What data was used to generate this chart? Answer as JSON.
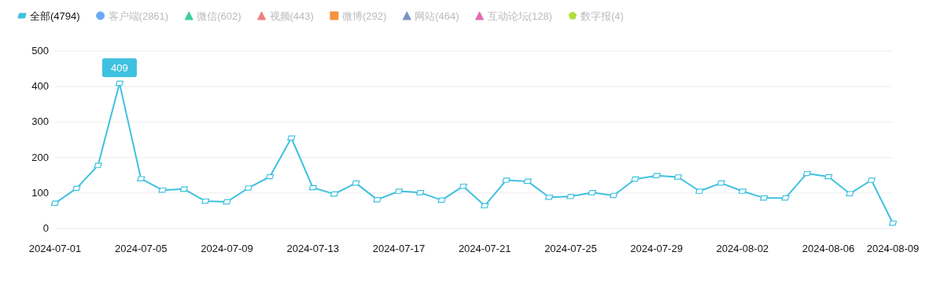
{
  "chart_data": {
    "type": "line",
    "categories": [
      "2024-07-01",
      null,
      null,
      null,
      "2024-07-05",
      null,
      null,
      null,
      "2024-07-09",
      null,
      null,
      null,
      "2024-07-13",
      null,
      null,
      null,
      "2024-07-17",
      null,
      null,
      null,
      "2024-07-21",
      null,
      null,
      null,
      "2024-07-25",
      null,
      null,
      null,
      "2024-07-29",
      null,
      null,
      null,
      "2024-08-02",
      null,
      null,
      null,
      "2024-08-06",
      null,
      null,
      "2024-08-09"
    ],
    "series": [
      {
        "name": "全部(4794)",
        "color": "#3fc1e0",
        "marker": "diamond",
        "values": [
          71,
          113,
          178,
          409,
          140,
          108,
          111,
          77,
          75,
          114,
          146,
          255,
          115,
          97,
          128,
          81,
          105,
          101,
          80,
          119,
          64,
          136,
          133,
          88,
          90,
          101,
          93,
          139,
          149,
          145,
          105,
          128,
          105,
          86,
          86,
          155,
          146,
          98,
          136,
          15
        ],
        "value_labels": [
          null,
          null,
          null,
          "409",
          null,
          null,
          null,
          null,
          null,
          null,
          null,
          null,
          null,
          null,
          null,
          null,
          null,
          null,
          null,
          null,
          null,
          null,
          null,
          null,
          null,
          null,
          null,
          null,
          null,
          null,
          null,
          null,
          null,
          null,
          null,
          null,
          null,
          null,
          null,
          null
        ]
      },
      {
        "name": "客户端(2861)",
        "color": "#6aa8f7",
        "marker": "circle",
        "values": [
          null,
          null,
          null,
          null,
          null,
          null,
          null,
          null,
          null,
          null,
          null,
          null,
          null,
          null,
          null,
          null,
          null,
          null,
          null,
          null,
          null,
          null,
          null,
          null,
          null,
          null,
          null,
          null,
          null,
          null,
          null,
          null,
          null,
          null,
          null,
          null,
          null,
          null,
          null,
          null
        ]
      },
      {
        "name": "微信(602)",
        "color": "#3ecf9a",
        "marker": "triangle",
        "values": [
          null,
          null,
          null,
          null,
          null,
          null,
          null,
          null,
          null,
          null,
          null,
          null,
          null,
          null,
          null,
          null,
          null,
          null,
          null,
          null,
          null,
          null,
          null,
          null,
          null,
          null,
          null,
          null,
          null,
          null,
          null,
          null,
          null,
          null,
          null,
          null,
          null,
          null,
          null,
          null
        ]
      },
      {
        "name": "视频(443)",
        "color": "#f07f7f",
        "marker": "triangle",
        "values": [
          null,
          null,
          null,
          null,
          null,
          null,
          null,
          null,
          null,
          null,
          null,
          null,
          null,
          null,
          null,
          null,
          null,
          null,
          null,
          null,
          null,
          null,
          null,
          null,
          null,
          null,
          null,
          null,
          null,
          null,
          null,
          null,
          null,
          null,
          null,
          null,
          null,
          null,
          null,
          null
        ]
      },
      {
        "name": "微博(292)",
        "color": "#f5923e",
        "marker": "square",
        "values": [
          null,
          null,
          null,
          null,
          null,
          null,
          null,
          null,
          null,
          null,
          null,
          null,
          null,
          null,
          null,
          null,
          null,
          null,
          null,
          null,
          null,
          null,
          null,
          null,
          null,
          null,
          null,
          null,
          null,
          null,
          null,
          null,
          null,
          null,
          null,
          null,
          null,
          null,
          null,
          null
        ]
      },
      {
        "name": "网站(464)",
        "color": "#7e92c8",
        "marker": "triangle",
        "values": [
          null,
          null,
          null,
          null,
          null,
          null,
          null,
          null,
          null,
          null,
          null,
          null,
          null,
          null,
          null,
          null,
          null,
          null,
          null,
          null,
          null,
          null,
          null,
          null,
          null,
          null,
          null,
          null,
          null,
          null,
          null,
          null,
          null,
          null,
          null,
          null,
          null,
          null,
          null,
          null
        ]
      },
      {
        "name": "互动论坛(128)",
        "color": "#e56bb0",
        "marker": "triangle",
        "values": [
          null,
          null,
          null,
          null,
          null,
          null,
          null,
          null,
          null,
          null,
          null,
          null,
          null,
          null,
          null,
          null,
          null,
          null,
          null,
          null,
          null,
          null,
          null,
          null,
          null,
          null,
          null,
          null,
          null,
          null,
          null,
          null,
          null,
          null,
          null,
          null,
          null,
          null,
          null,
          null
        ]
      },
      {
        "name": "数字报(4)",
        "color": "#b4dc3c",
        "marker": "star",
        "values": [
          null,
          null,
          null,
          null,
          null,
          null,
          null,
          null,
          null,
          null,
          null,
          null,
          null,
          null,
          null,
          null,
          null,
          null,
          null,
          null,
          null,
          null,
          null,
          null,
          null,
          null,
          null,
          null,
          null,
          null,
          null,
          null,
          null,
          null,
          null,
          null,
          null,
          null,
          null,
          null
        ]
      }
    ],
    "ylim": [
      0,
      500
    ],
    "yticks": [
      0,
      100,
      200,
      300,
      400,
      500
    ],
    "grid": "y",
    "legend": "top left",
    "line_style": "solid"
  }
}
